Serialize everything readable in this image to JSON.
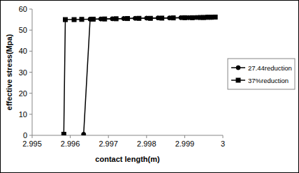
{
  "chart_data": {
    "type": "line",
    "x_label": "contact length(m)",
    "y_label": "effective stress(Mpa)",
    "xlim": [
      2.995,
      3
    ],
    "xticks": [
      2.995,
      2.996,
      2.997,
      2.998,
      2.999,
      3
    ],
    "ylim": [
      0,
      60
    ],
    "yticks": [
      0,
      10,
      20,
      30,
      40,
      50,
      60
    ],
    "grid": false,
    "legend": "right",
    "series": [
      {
        "name": "27.44reduction",
        "color": "#000000",
        "marker": "circle",
        "line_style": "solid",
        "x": [
          2.99635,
          2.99652,
          2.9968,
          2.9971,
          2.9974,
          2.9977,
          2.998,
          2.9983,
          2.9986,
          2.9989,
          2.9991,
          2.9993,
          2.9995,
          2.9996,
          2.9997
        ],
        "values": [
          0.5,
          55.2,
          55.3,
          55.4,
          55.5,
          55.6,
          55.7,
          55.8,
          55.8,
          55.9,
          55.9,
          56.0,
          56.0,
          56.1,
          56.1
        ]
      },
      {
        "name": "37%reduction",
        "color": "#000000",
        "marker": "square",
        "line_style": "solid",
        "x": [
          2.99583,
          2.99587,
          2.9961,
          2.9963,
          2.9966,
          2.9969,
          2.9972,
          2.9975,
          2.9978,
          2.9981,
          2.9984,
          2.9987,
          2.999,
          2.9992,
          2.9994,
          2.9995,
          2.9996,
          2.9997,
          2.9998
        ],
        "values": [
          0.5,
          55.0,
          55.0,
          55.1,
          55.2,
          55.3,
          55.4,
          55.5,
          55.6,
          55.6,
          55.7,
          55.8,
          55.9,
          55.9,
          56.0,
          56.0,
          56.1,
          56.1,
          56.2
        ]
      }
    ]
  }
}
